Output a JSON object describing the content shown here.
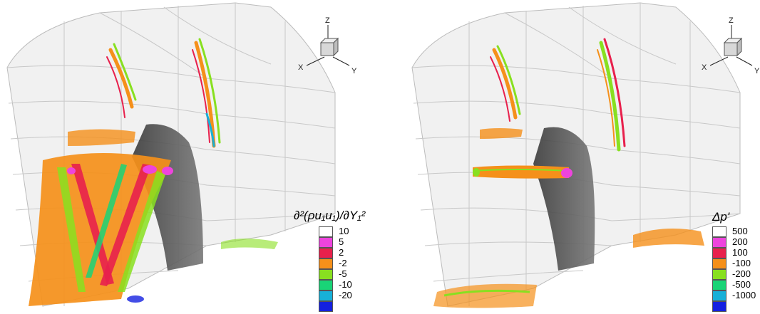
{
  "panels": [
    {
      "id": "left",
      "legend_title": "∂²(ρu₁u₁)/∂Y₁²",
      "legend_items": [
        {
          "label": "10",
          "color": "#ffffff"
        },
        {
          "label": "5",
          "color": "#ee44dd"
        },
        {
          "label": "2",
          "color": "#e8204c"
        },
        {
          "label": "-2",
          "color": "#f5901a"
        },
        {
          "label": "-5",
          "color": "#88e020"
        },
        {
          "label": "-10",
          "color": "#19d477"
        },
        {
          "label": "-20",
          "color": "#17b0d8"
        },
        {
          "label": "",
          "color": "#1420e0"
        }
      ],
      "axis": {
        "z": "Z",
        "x": "X",
        "y": "Y"
      }
    },
    {
      "id": "right",
      "legend_title": "Δp'",
      "legend_items": [
        {
          "label": "500",
          "color": "#ffffff"
        },
        {
          "label": "200",
          "color": "#ee44dd"
        },
        {
          "label": "100",
          "color": "#e8204c"
        },
        {
          "label": "-100",
          "color": "#f5901a"
        },
        {
          "label": "-200",
          "color": "#88e020"
        },
        {
          "label": "-500",
          "color": "#19d477"
        },
        {
          "label": "-1000",
          "color": "#17b0d8"
        },
        {
          "label": "",
          "color": "#1420e0"
        }
      ],
      "axis": {
        "z": "Z",
        "x": "X",
        "y": "Y"
      }
    }
  ]
}
